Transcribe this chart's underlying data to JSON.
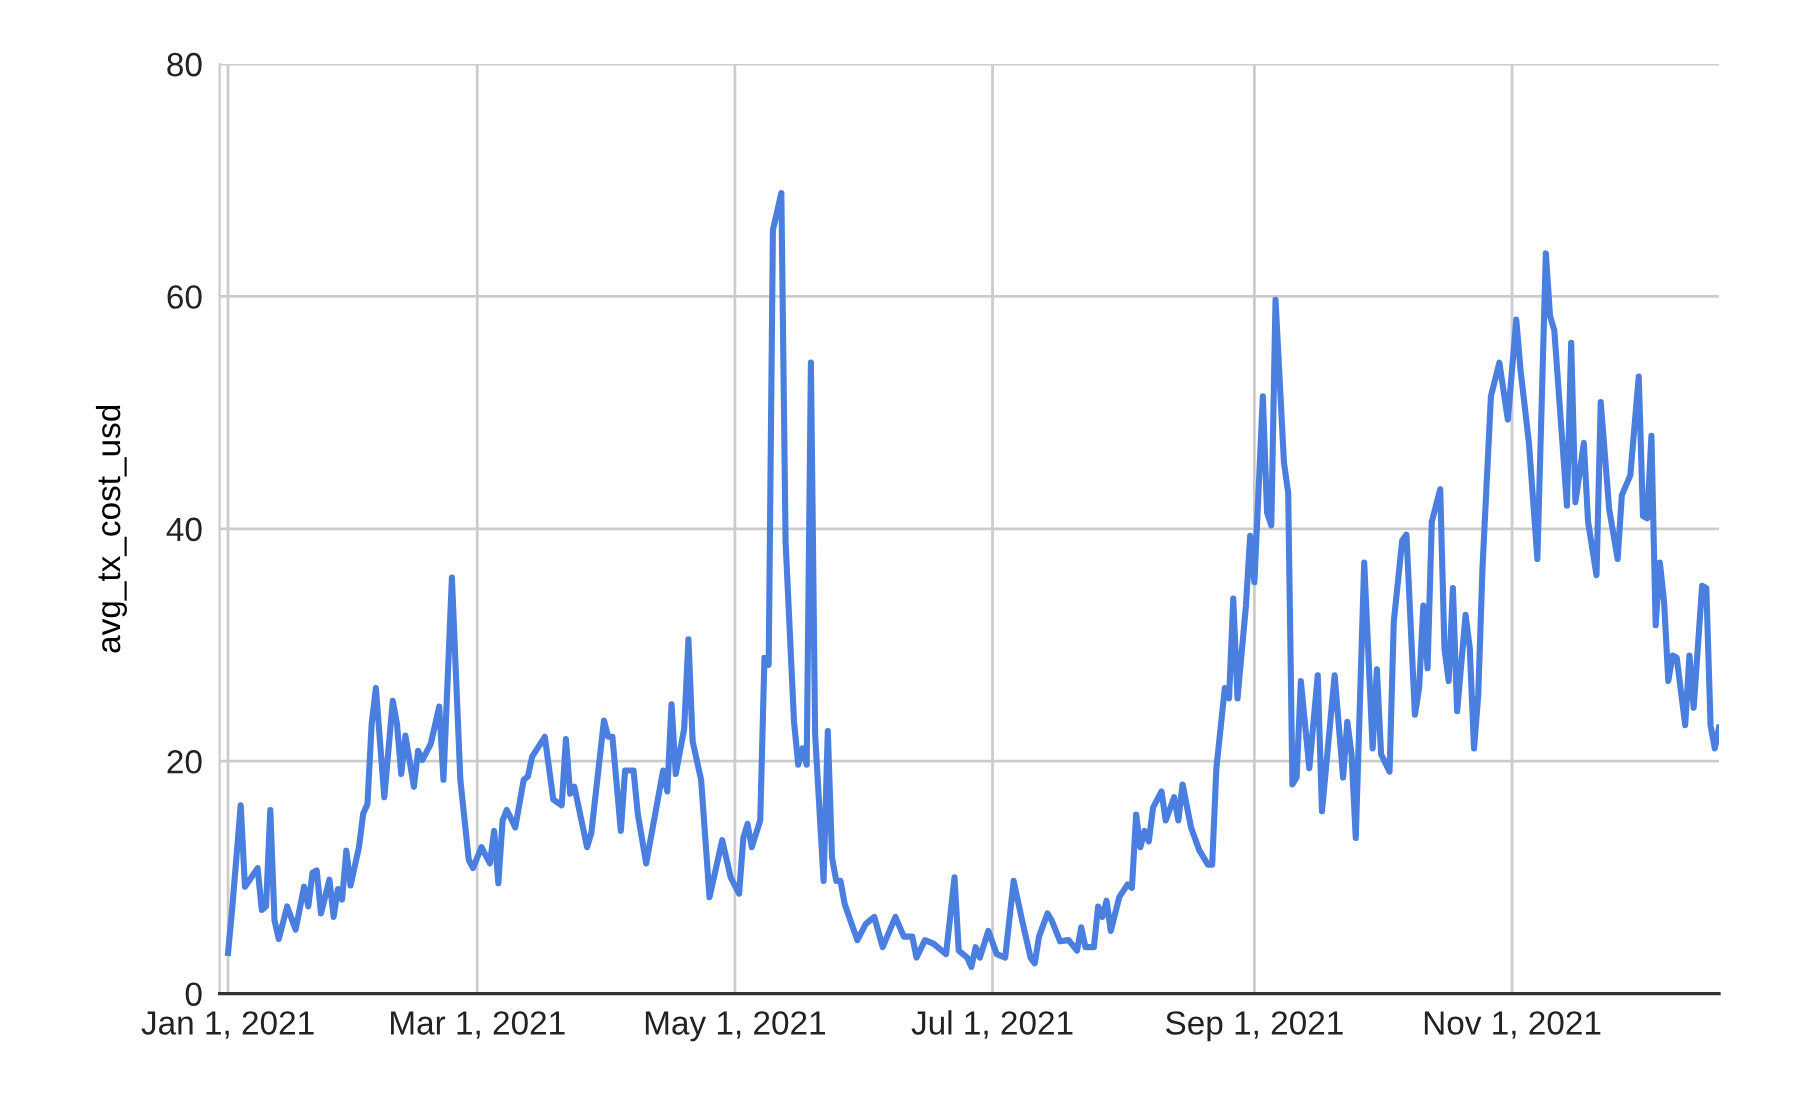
{
  "chart_data": {
    "type": "line",
    "ylabel": "avg_tx_cost_usd",
    "x": [
      "2021-01-01",
      "2021-01-02",
      "2021-01-04",
      "2021-01-05",
      "2021-01-08",
      "2021-01-09",
      "2021-01-10",
      "2021-01-11",
      "2021-01-12",
      "2021-01-13",
      "2021-01-15",
      "2021-01-17",
      "2021-01-19",
      "2021-01-20",
      "2021-01-21",
      "2021-01-22",
      "2021-01-23",
      "2021-01-25",
      "2021-01-26",
      "2021-01-27",
      "2021-01-28",
      "2021-01-29",
      "2021-01-30",
      "2021-02-01",
      "2021-02-02",
      "2021-02-03",
      "2021-02-04",
      "2021-02-05",
      "2021-02-07",
      "2021-02-09",
      "2021-02-10",
      "2021-02-11",
      "2021-02-12",
      "2021-02-14",
      "2021-02-15",
      "2021-02-16",
      "2021-02-18",
      "2021-02-20",
      "2021-02-21",
      "2021-02-23",
      "2021-02-25",
      "2021-02-27",
      "2021-02-28",
      "2021-03-02",
      "2021-03-04",
      "2021-03-05",
      "2021-03-06",
      "2021-03-07",
      "2021-03-08",
      "2021-03-10",
      "2021-03-12",
      "2021-03-13",
      "2021-03-14",
      "2021-03-17",
      "2021-03-19",
      "2021-03-21",
      "2021-03-22",
      "2021-03-23",
      "2021-03-24",
      "2021-03-27",
      "2021-03-28",
      "2021-03-31",
      "2021-04-01",
      "2021-04-02",
      "2021-04-04",
      "2021-04-05",
      "2021-04-07",
      "2021-04-08",
      "2021-04-10",
      "2021-04-14",
      "2021-04-15",
      "2021-04-16",
      "2021-04-17",
      "2021-04-19",
      "2021-04-20",
      "2021-04-21",
      "2021-04-23",
      "2021-04-25",
      "2021-04-28",
      "2021-04-30",
      "2021-05-02",
      "2021-05-03",
      "2021-05-04",
      "2021-05-05",
      "2021-05-07",
      "2021-05-08",
      "2021-05-09",
      "2021-05-10",
      "2021-05-12",
      "2021-05-13",
      "2021-05-15",
      "2021-05-16",
      "2021-05-17",
      "2021-05-18",
      "2021-05-19",
      "2021-05-20",
      "2021-05-22",
      "2021-05-23",
      "2021-05-24",
      "2021-05-25",
      "2021-05-26",
      "2021-05-27",
      "2021-05-30",
      "2021-06-01",
      "2021-06-03",
      "2021-06-05",
      "2021-06-08",
      "2021-06-10",
      "2021-06-12",
      "2021-06-13",
      "2021-06-15",
      "2021-06-17",
      "2021-06-20",
      "2021-06-22",
      "2021-06-23",
      "2021-06-25",
      "2021-06-26",
      "2021-06-27",
      "2021-06-28",
      "2021-06-30",
      "2021-07-02",
      "2021-07-04",
      "2021-07-06",
      "2021-07-08",
      "2021-07-10",
      "2021-07-11",
      "2021-07-12",
      "2021-07-14",
      "2021-07-15",
      "2021-07-17",
      "2021-07-19",
      "2021-07-21",
      "2021-07-22",
      "2021-07-23",
      "2021-07-25",
      "2021-07-26",
      "2021-07-27",
      "2021-07-28",
      "2021-07-29",
      "2021-07-31",
      "2021-08-02",
      "2021-08-03",
      "2021-08-04",
      "2021-08-05",
      "2021-08-06",
      "2021-08-07",
      "2021-08-08",
      "2021-08-10",
      "2021-08-11",
      "2021-08-13",
      "2021-08-14",
      "2021-08-15",
      "2021-08-17",
      "2021-08-19",
      "2021-08-21",
      "2021-08-22",
      "2021-08-23",
      "2021-08-25",
      "2021-08-26",
      "2021-08-27",
      "2021-08-28",
      "2021-08-30",
      "2021-08-31",
      "2021-09-01",
      "2021-09-03",
      "2021-09-04",
      "2021-09-05",
      "2021-09-06",
      "2021-09-08",
      "2021-09-09",
      "2021-09-10",
      "2021-09-11",
      "2021-09-12",
      "2021-09-14",
      "2021-09-16",
      "2021-09-17",
      "2021-09-20",
      "2021-09-22",
      "2021-09-23",
      "2021-09-24",
      "2021-09-25",
      "2021-09-27",
      "2021-09-29",
      "2021-09-30",
      "2021-10-01",
      "2021-10-03",
      "2021-10-04",
      "2021-10-06",
      "2021-10-07",
      "2021-10-09",
      "2021-10-10",
      "2021-10-11",
      "2021-10-12",
      "2021-10-13",
      "2021-10-15",
      "2021-10-16",
      "2021-10-17",
      "2021-10-18",
      "2021-10-19",
      "2021-10-21",
      "2021-10-22",
      "2021-10-23",
      "2021-10-24",
      "2021-10-25",
      "2021-10-27",
      "2021-10-29",
      "2021-10-31",
      "2021-11-02",
      "2021-11-03",
      "2021-11-05",
      "2021-11-07",
      "2021-11-09",
      "2021-11-10",
      "2021-11-11",
      "2021-11-14",
      "2021-11-15",
      "2021-11-16",
      "2021-11-18",
      "2021-11-19",
      "2021-11-21",
      "2021-11-22",
      "2021-11-24",
      "2021-11-26",
      "2021-11-27",
      "2021-11-29",
      "2021-12-01",
      "2021-12-02",
      "2021-12-03",
      "2021-12-04",
      "2021-12-05",
      "2021-12-06",
      "2021-12-07",
      "2021-12-08",
      "2021-12-09",
      "2021-12-10",
      "2021-12-12",
      "2021-12-13",
      "2021-12-14",
      "2021-12-16",
      "2021-12-17",
      "2021-12-18",
      "2021-12-19",
      "2021-12-20"
    ],
    "series": [
      {
        "color": "#4a7fe0",
        "values": [
          3.5,
          7.4,
          16.2,
          9.2,
          10.8,
          7.2,
          7.5,
          15.8,
          6.3,
          4.7,
          7.5,
          5.5,
          9.2,
          7.5,
          10.4,
          10.6,
          6.9,
          9.8,
          6.6,
          9,
          8.1,
          12.3,
          9.3,
          12.6,
          15.5,
          16.3,
          23.2,
          26.3,
          16.9,
          25.2,
          23.2,
          18.9,
          22.2,
          17.8,
          20.9,
          20.1,
          21.5,
          24.7,
          18.4,
          35.8,
          18.4,
          11.5,
          10.8,
          12.6,
          11.2,
          14,
          9.5,
          14.9,
          15.8,
          14.3,
          18.4,
          18.7,
          20.4,
          22.1,
          16.7,
          16.2,
          21.9,
          17.2,
          17.8,
          12.6,
          13.8,
          23.5,
          22.1,
          22.1,
          14,
          19.2,
          19.2,
          15.5,
          11.2,
          19.2,
          17.4,
          24.9,
          18.9,
          22.8,
          30.5,
          21.7,
          18.4,
          8.3,
          13.2,
          10,
          8.6,
          13.4,
          14.6,
          12.6,
          14.9,
          28.9,
          28.3,
          65.7,
          68.9,
          38.9,
          23.4,
          19.7,
          21.1,
          19.7,
          54.3,
          22.3,
          9.7,
          22.6,
          11.7,
          9.7,
          9.7,
          7.7,
          4.6,
          6,
          6.6,
          4,
          6.6,
          4.9,
          4.9,
          3.1,
          4.6,
          4.3,
          3.4,
          10,
          3.7,
          3.1,
          2.3,
          4,
          3.1,
          5.4,
          3.4,
          3.1,
          9.7,
          6.3,
          3.1,
          2.6,
          4.9,
          6.9,
          6.3,
          4.5,
          4.6,
          3.7,
          5.7,
          4,
          4,
          7.5,
          6.6,
          8,
          5.4,
          8.3,
          9.4,
          9.1,
          15.4,
          12.6,
          14,
          13.1,
          16,
          17.4,
          14.9,
          16.9,
          14.9,
          18,
          14.3,
          12.3,
          11.1,
          11.1,
          19.4,
          26.3,
          25.4,
          34,
          25.4,
          33.4,
          39.4,
          35.4,
          51.4,
          41.4,
          40.3,
          59.7,
          45.7,
          43.1,
          18,
          18.6,
          26.9,
          19.4,
          27.4,
          15.7,
          27.4,
          18.6,
          23.4,
          20.6,
          13.4,
          37.1,
          21.1,
          27.9,
          20.6,
          19.1,
          32,
          39,
          39.5,
          24,
          26.3,
          33.4,
          28,
          40.6,
          43.4,
          29.7,
          26.9,
          34.9,
          24.3,
          32.6,
          29.7,
          21.1,
          25.7,
          36.6,
          51.4,
          54.3,
          49.4,
          58,
          53.7,
          47.4,
          37.4,
          63.7,
          58.3,
          57.1,
          42,
          56,
          42.3,
          47.4,
          40.6,
          36,
          50.9,
          41.7,
          37.4,
          42.9,
          44.6,
          53.1,
          41.1,
          40.9,
          48,
          31.7,
          37.1,
          33.7,
          26.9,
          29.1,
          28.9,
          23.1,
          29.1,
          24.6,
          35.1,
          34.9,
          23.1,
          21.1,
          22.9
        ]
      }
    ],
    "xlim": [
      "2020-12-30",
      "2021-12-20"
    ],
    "xticks": [
      {
        "value": "2021-01-01",
        "label": "Jan 1, 2021"
      },
      {
        "value": "2021-03-01",
        "label": "Mar 1, 2021"
      },
      {
        "value": "2021-05-01",
        "label": "May 1, 2021"
      },
      {
        "value": "2021-07-01",
        "label": "Jul 1, 2021"
      },
      {
        "value": "2021-09-01",
        "label": "Sep 1, 2021"
      },
      {
        "value": "2021-11-01",
        "label": "Nov 1, 2021"
      }
    ],
    "ylim": [
      0,
      80
    ],
    "yticks": [
      0,
      20,
      40,
      60,
      80
    ],
    "grid": true,
    "line_style": "solid"
  }
}
